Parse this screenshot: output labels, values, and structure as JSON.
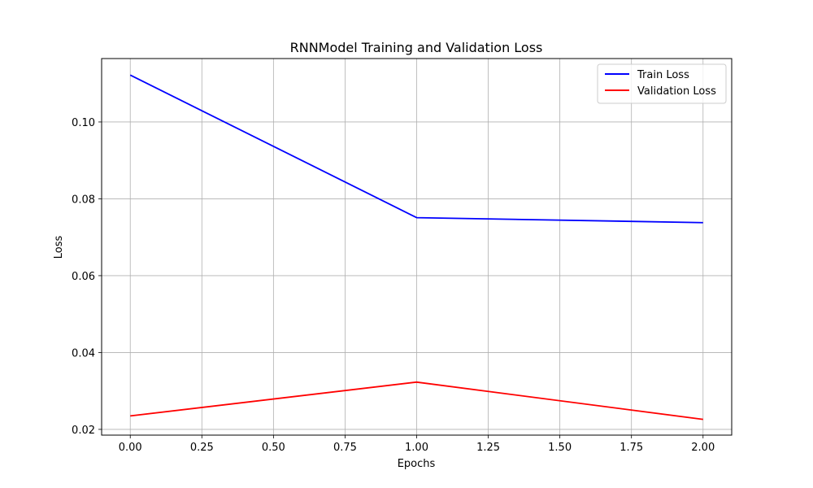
{
  "chart_data": {
    "type": "line",
    "title": "RNNModel Training and Validation Loss",
    "xlabel": "Epochs",
    "ylabel": "Loss",
    "xlim": [
      -0.1,
      2.1
    ],
    "ylim": [
      0.0185,
      0.1165
    ],
    "xticks": [
      "0.00",
      "0.25",
      "0.50",
      "0.75",
      "1.00",
      "1.25",
      "1.50",
      "1.75",
      "2.00"
    ],
    "yticks": [
      "0.02",
      "0.04",
      "0.06",
      "0.08",
      "0.10"
    ],
    "grid": true,
    "legend_position": "top-right",
    "x": [
      0,
      1,
      2
    ],
    "series": [
      {
        "name": "Train Loss",
        "color": "#0000ff",
        "values": [
          0.1122,
          0.0751,
          0.0738
        ]
      },
      {
        "name": "Validation Loss",
        "color": "#ff0000",
        "values": [
          0.0235,
          0.0323,
          0.0226
        ]
      }
    ]
  }
}
